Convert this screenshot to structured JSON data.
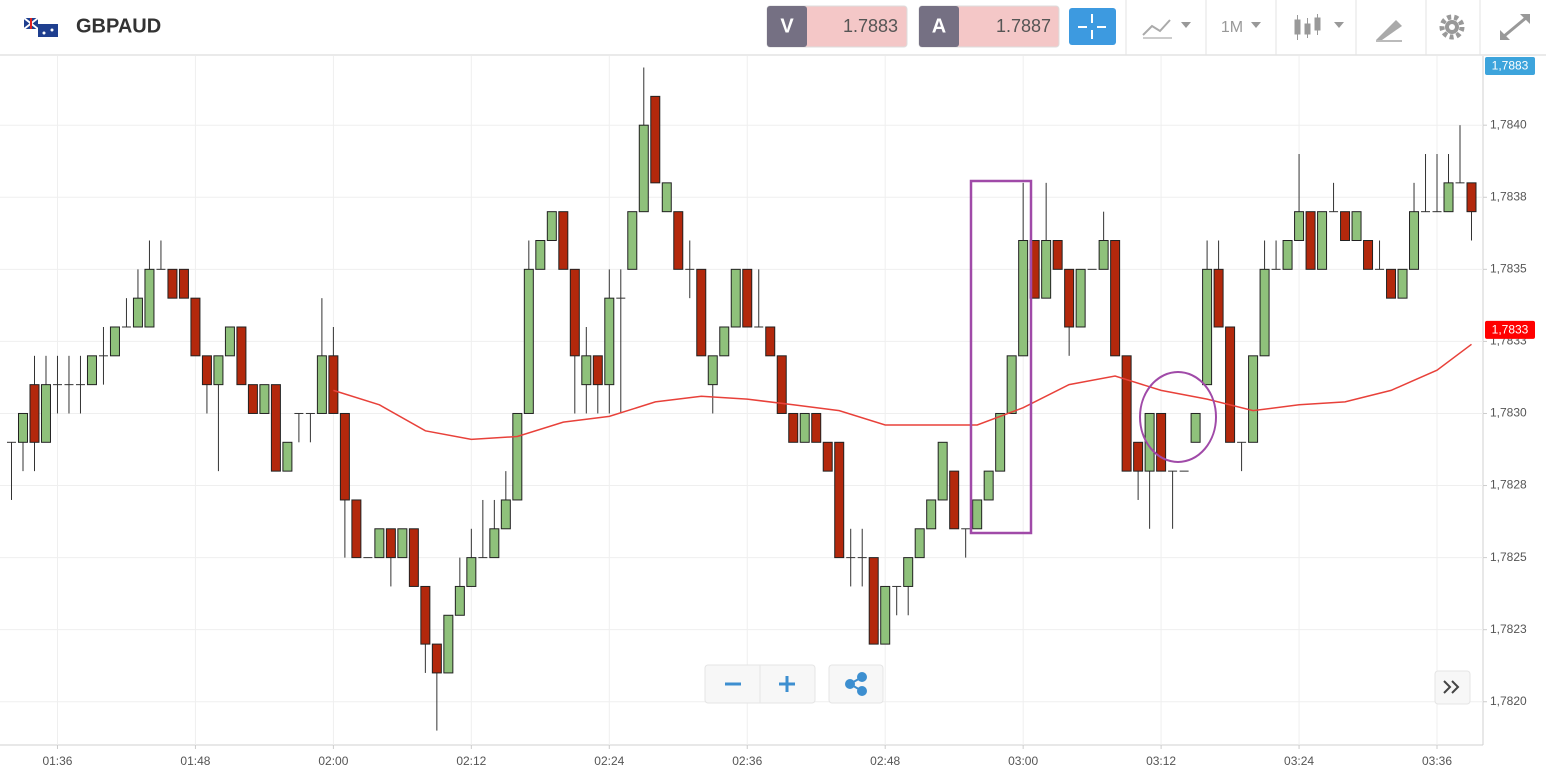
{
  "header": {
    "symbol": "GBPAUD",
    "sell_label": "V",
    "sell_price": "1.7883",
    "buy_label": "A",
    "buy_price": "1.7887",
    "timeframe": "1M"
  },
  "chart_data": {
    "type": "candlestick",
    "x": [
      "01:32",
      "01:33",
      "01:34",
      "01:35",
      "01:36",
      "01:37",
      "01:38",
      "01:39",
      "01:40",
      "01:41",
      "01:42",
      "01:43",
      "01:44",
      "01:45",
      "01:46",
      "01:47",
      "01:48",
      "01:49",
      "01:50",
      "01:51",
      "01:52",
      "01:53",
      "01:54",
      "01:55",
      "01:56",
      "01:57",
      "01:58",
      "01:59",
      "02:00",
      "02:01",
      "02:02",
      "02:03",
      "02:04",
      "02:05",
      "02:06",
      "02:07",
      "02:08",
      "02:09",
      "02:10",
      "02:11",
      "02:12",
      "02:13",
      "02:14",
      "02:15",
      "02:16",
      "02:17",
      "02:18",
      "02:19",
      "02:20",
      "02:21",
      "02:22",
      "02:23",
      "02:24",
      "02:25",
      "02:26",
      "02:27",
      "02:28",
      "02:29",
      "02:30",
      "02:31",
      "02:32",
      "02:33",
      "02:34",
      "02:35",
      "02:36",
      "02:37",
      "02:38",
      "02:39",
      "02:40",
      "02:41",
      "02:42",
      "02:43",
      "02:44",
      "02:45",
      "02:46",
      "02:47",
      "02:48",
      "02:49",
      "02:50",
      "02:51",
      "02:52",
      "02:53",
      "02:54",
      "02:55",
      "02:56",
      "02:57",
      "02:58",
      "02:59",
      "03:00",
      "03:01",
      "03:02",
      "03:03",
      "03:04",
      "03:05",
      "03:06",
      "03:07",
      "03:08",
      "03:09",
      "03:10",
      "03:11",
      "03:12",
      "03:13",
      "03:14",
      "03:15",
      "03:16",
      "03:17",
      "03:18",
      "03:19",
      "03:20",
      "03:21",
      "03:22",
      "03:23",
      "03:24",
      "03:25",
      "03:26",
      "03:27",
      "03:28",
      "03:29",
      "03:30",
      "03:31",
      "03:32",
      "03:33",
      "03:34",
      "03:35",
      "03:36",
      "03:37",
      "03:38",
      "03:39"
    ],
    "open": [
      1.7829,
      1.7829,
      1.7831,
      1.7829,
      1.7831,
      1.7831,
      1.7831,
      1.7831,
      1.7832,
      1.7832,
      1.7833,
      1.7833,
      1.7833,
      1.7835,
      1.7835,
      1.7835,
      1.7834,
      1.7832,
      1.7831,
      1.7832,
      1.7833,
      1.7831,
      1.783,
      1.7831,
      1.7828,
      1.783,
      1.783,
      1.783,
      1.7832,
      1.783,
      1.7827,
      1.7825,
      1.7825,
      1.7826,
      1.7825,
      1.7826,
      1.7824,
      1.7822,
      1.7821,
      1.7823,
      1.7824,
      1.7825,
      1.7825,
      1.7826,
      1.7827,
      1.783,
      1.7835,
      1.7836,
      1.7837,
      1.7835,
      1.7831,
      1.7832,
      1.7831,
      1.7834,
      1.7835,
      1.7837,
      1.7841,
      1.7837,
      1.7837,
      1.7835,
      1.7835,
      1.7831,
      1.7832,
      1.7833,
      1.7835,
      1.7833,
      1.7833,
      1.7832,
      1.783,
      1.7829,
      1.783,
      1.7829,
      1.7829,
      1.7825,
      1.7825,
      1.7825,
      1.7822,
      1.7824,
      1.7824,
      1.7825,
      1.7826,
      1.7827,
      1.7828,
      1.7826,
      1.7826,
      1.7827,
      1.7828,
      1.783,
      1.7832,
      1.7836,
      1.7834,
      1.7836,
      1.7835,
      1.7833,
      1.7835,
      1.7835,
      1.7836,
      1.7832,
      1.7829,
      1.7828,
      1.783,
      1.7828,
      1.7828,
      1.7829,
      1.7831,
      1.7835,
      1.7833,
      1.7829,
      1.7829,
      1.7832,
      1.7835,
      1.7835,
      1.7836,
      1.7837,
      1.7835,
      1.7837,
      1.7837,
      1.7836,
      1.7836,
      1.7835,
      1.7835,
      1.7834,
      1.7835,
      1.7837,
      1.7837,
      1.7837,
      1.7838,
      1.7838
    ],
    "high": [
      1.7829,
      1.783,
      1.7832,
      1.7832,
      1.7832,
      1.7832,
      1.7832,
      1.7832,
      1.7833,
      1.7833,
      1.7834,
      1.7835,
      1.7836,
      1.7836,
      1.7835,
      1.7835,
      1.7834,
      1.7832,
      1.7832,
      1.7833,
      1.7833,
      1.7831,
      1.7831,
      1.7831,
      1.7829,
      1.783,
      1.783,
      1.7834,
      1.7833,
      1.783,
      1.7827,
      1.7825,
      1.7826,
      1.7826,
      1.7826,
      1.7826,
      1.7824,
      1.7822,
      1.7823,
      1.7825,
      1.7826,
      1.7827,
      1.7827,
      1.7828,
      1.783,
      1.7836,
      1.7836,
      1.7837,
      1.7837,
      1.7835,
      1.7833,
      1.7832,
      1.7835,
      1.7835,
      1.7837,
      1.7842,
      1.7841,
      1.7838,
      1.7837,
      1.7836,
      1.7835,
      1.7832,
      1.7833,
      1.7835,
      1.7835,
      1.7835,
      1.7833,
      1.7832,
      1.783,
      1.783,
      1.783,
      1.7829,
      1.7829,
      1.7826,
      1.7826,
      1.7825,
      1.7824,
      1.7824,
      1.7825,
      1.7826,
      1.7827,
      1.7829,
      1.7828,
      1.7826,
      1.7827,
      1.7828,
      1.783,
      1.7832,
      1.7838,
      1.7836,
      1.7838,
      1.7836,
      1.7835,
      1.7835,
      1.7835,
      1.7837,
      1.7836,
      1.7832,
      1.7829,
      1.783,
      1.783,
      1.7828,
      1.7828,
      1.783,
      1.7836,
      1.7836,
      1.7833,
      1.7829,
      1.7832,
      1.7836,
      1.7836,
      1.7836,
      1.7839,
      1.7837,
      1.7837,
      1.7838,
      1.7837,
      1.7837,
      1.7836,
      1.7836,
      1.7835,
      1.7835,
      1.7838,
      1.7839,
      1.7839,
      1.7839,
      1.784,
      1.7838
    ],
    "low": [
      1.7827,
      1.7828,
      1.7828,
      1.7829,
      1.783,
      1.783,
      1.783,
      1.7831,
      1.7831,
      1.7832,
      1.7833,
      1.7833,
      1.7833,
      1.7835,
      1.7834,
      1.7834,
      1.7832,
      1.783,
      1.7828,
      1.7832,
      1.7831,
      1.783,
      1.783,
      1.7828,
      1.7828,
      1.7829,
      1.7829,
      1.783,
      1.783,
      1.7825,
      1.7825,
      1.7825,
      1.7825,
      1.7824,
      1.7825,
      1.7824,
      1.7821,
      1.7819,
      1.7821,
      1.7823,
      1.7824,
      1.7825,
      1.7825,
      1.7826,
      1.7827,
      1.783,
      1.7835,
      1.7836,
      1.7835,
      1.783,
      1.783,
      1.783,
      1.783,
      1.783,
      1.7835,
      1.7837,
      1.7838,
      1.7837,
      1.7835,
      1.7834,
      1.7832,
      1.783,
      1.7832,
      1.7833,
      1.7833,
      1.7833,
      1.7832,
      1.783,
      1.7829,
      1.7829,
      1.7829,
      1.7828,
      1.7825,
      1.7824,
      1.7824,
      1.7822,
      1.7822,
      1.7823,
      1.7823,
      1.7825,
      1.7826,
      1.7827,
      1.7826,
      1.7825,
      1.7826,
      1.7827,
      1.7828,
      1.783,
      1.7832,
      1.7834,
      1.7834,
      1.7835,
      1.7832,
      1.7833,
      1.7835,
      1.7835,
      1.7832,
      1.7828,
      1.7827,
      1.7826,
      1.7828,
      1.7826,
      1.7828,
      1.7829,
      1.7831,
      1.7833,
      1.7829,
      1.7828,
      1.7829,
      1.7832,
      1.7835,
      1.7835,
      1.7836,
      1.7835,
      1.7835,
      1.7837,
      1.7836,
      1.7836,
      1.7835,
      1.7835,
      1.7834,
      1.7834,
      1.7835,
      1.7837,
      1.7837,
      1.7837,
      1.7838,
      1.7836
    ],
    "close": [
      1.7829,
      1.783,
      1.7829,
      1.7831,
      1.7831,
      1.7831,
      1.7831,
      1.7832,
      1.7832,
      1.7833,
      1.7833,
      1.7834,
      1.7835,
      1.7835,
      1.7834,
      1.7834,
      1.7832,
      1.7831,
      1.7832,
      1.7833,
      1.7831,
      1.783,
      1.7831,
      1.7828,
      1.7829,
      1.783,
      1.783,
      1.7832,
      1.783,
      1.7827,
      1.7825,
      1.7825,
      1.7826,
      1.7825,
      1.7826,
      1.7824,
      1.7822,
      1.7821,
      1.7823,
      1.7824,
      1.7825,
      1.7825,
      1.7826,
      1.7827,
      1.783,
      1.7835,
      1.7836,
      1.7837,
      1.7835,
      1.7832,
      1.7832,
      1.7831,
      1.7834,
      1.7834,
      1.7837,
      1.784,
      1.7838,
      1.7838,
      1.7835,
      1.7835,
      1.7832,
      1.7832,
      1.7833,
      1.7835,
      1.7833,
      1.7833,
      1.7832,
      1.783,
      1.7829,
      1.783,
      1.7829,
      1.7828,
      1.7825,
      1.7825,
      1.7825,
      1.7822,
      1.7824,
      1.7824,
      1.7825,
      1.7826,
      1.7827,
      1.7829,
      1.7826,
      1.7826,
      1.7827,
      1.7828,
      1.783,
      1.7832,
      1.7836,
      1.7834,
      1.7836,
      1.7835,
      1.7833,
      1.7835,
      1.7835,
      1.7836,
      1.7832,
      1.7828,
      1.7828,
      1.783,
      1.7828,
      1.7828,
      1.7828,
      1.783,
      1.7835,
      1.7833,
      1.7829,
      1.7829,
      1.7832,
      1.7835,
      1.7835,
      1.7836,
      1.7837,
      1.7835,
      1.7837,
      1.7837,
      1.7836,
      1.7837,
      1.7835,
      1.7835,
      1.7834,
      1.7835,
      1.7837,
      1.7837,
      1.7837,
      1.7838,
      1.7838,
      1.7837
    ],
    "up_color": "#8fc17b",
    "down_color": "#b3280c",
    "moving_average": {
      "color": "#e8413a",
      "x": [
        "02:00",
        "02:04",
        "02:08",
        "02:12",
        "02:16",
        "02:20",
        "02:24",
        "02:28",
        "02:32",
        "02:36",
        "02:40",
        "02:44",
        "02:48",
        "02:52",
        "02:56",
        "03:00",
        "03:04",
        "03:08",
        "03:12",
        "03:16",
        "03:20",
        "03:24",
        "03:28",
        "03:32",
        "03:36",
        "03:39"
      ],
      "values": [
        1.78308,
        1.78303,
        1.78294,
        1.78291,
        1.78292,
        1.78297,
        1.78299,
        1.78304,
        1.78306,
        1.78305,
        1.78303,
        1.78301,
        1.78296,
        1.78296,
        1.78296,
        1.78302,
        1.7831,
        1.78313,
        1.78308,
        1.78305,
        1.78301,
        1.78303,
        1.78304,
        1.78308,
        1.78315,
        1.78324
      ]
    },
    "xlim": [
      "01:31",
      "03:40"
    ],
    "xticks": [
      "01:36",
      "01:48",
      "02:00",
      "02:12",
      "02:24",
      "02:36",
      "02:48",
      "03:00",
      "03:12",
      "03:24",
      "03:36"
    ],
    "ylim": [
      1.78185,
      1.78424
    ],
    "yticks": [
      {
        "value": 1.782,
        "label": "1,7820"
      },
      {
        "value": 1.78225,
        "label": "1,7823"
      },
      {
        "value": 1.7825,
        "label": "1,7825"
      },
      {
        "value": 1.78275,
        "label": "1,7828"
      },
      {
        "value": 1.783,
        "label": "1,7830"
      },
      {
        "value": 1.78325,
        "label": "1,7833"
      },
      {
        "value": 1.7835,
        "label": "1,7835"
      },
      {
        "value": 1.78375,
        "label": "1,7838"
      },
      {
        "value": 1.784,
        "label": "1,7840"
      }
    ],
    "grid": true,
    "bid_tag": "1,7883",
    "last_price": {
      "value": 1.78329,
      "label": "1,7833"
    }
  }
}
